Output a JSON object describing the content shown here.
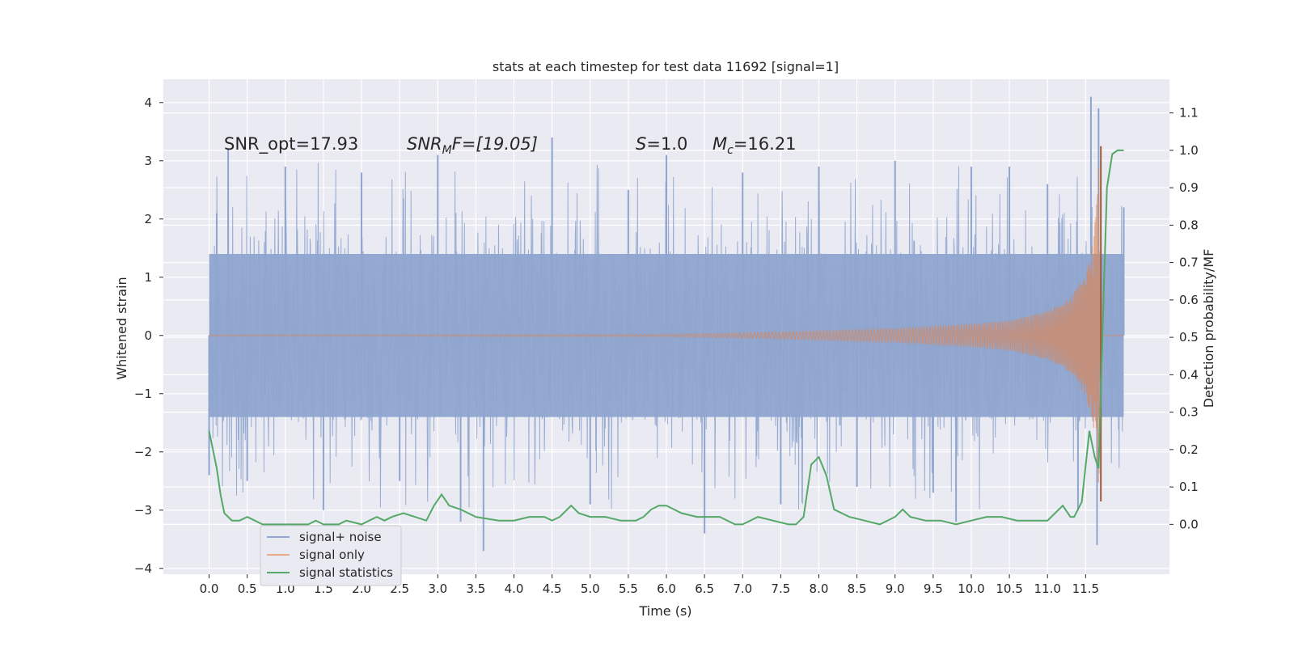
{
  "chart_data": {
    "type": "line",
    "title": "stats at each timestep for test data 11692 [signal=1]",
    "xlabel": "Time (s)",
    "ylabel": "Whitened strain",
    "y2label": "Detection probability/MF",
    "xlim": [
      -0.6,
      12.6
    ],
    "ylim": [
      -4.1,
      4.4
    ],
    "y2lim": [
      -0.1333,
      1.19
    ],
    "xticks": [
      "0.0",
      "0.5",
      "1.0",
      "1.5",
      "2.0",
      "2.5",
      "3.0",
      "3.5",
      "4.0",
      "4.5",
      "5.0",
      "5.5",
      "6.0",
      "6.5",
      "7.0",
      "7.5",
      "8.0",
      "8.5",
      "9.0",
      "9.5",
      "10.0",
      "10.5",
      "11.0",
      "11.5"
    ],
    "yticks": [
      "4",
      "3",
      "2",
      "1",
      "0",
      "−1",
      "−2",
      "−3",
      "−4"
    ],
    "y2ticks": [
      "1.1",
      "1.0",
      "0.9",
      "0.8",
      "0.7",
      "0.6",
      "0.5",
      "0.4",
      "0.3",
      "0.2",
      "0.1",
      "0.0"
    ],
    "grid": true,
    "legend_position": "lower-left",
    "annotations": {
      "snr_opt": "SNR_opt=17.93",
      "snr_mf_base": "SNR",
      "snr_mf_sub": "M",
      "snr_mf_rest": "F=[19.05]",
      "s_var": "S",
      "s_val": "=1.0",
      "mc_var": "M",
      "mc_sub": "c",
      "mc_val": "=16.21"
    },
    "series": [
      {
        "name": "signal+ noise",
        "color": "#8fa5cf",
        "description_range": [
          -3.6,
          4.1
        ],
        "points": [
          [
            0.0,
            -2.4
          ],
          [
            0.1,
            2.1
          ],
          [
            0.25,
            3.2
          ],
          [
            0.5,
            -2.5
          ],
          [
            1.0,
            2.9
          ],
          [
            1.5,
            -3.0
          ],
          [
            2.0,
            2.8
          ],
          [
            2.5,
            -2.5
          ],
          [
            3.0,
            3.1
          ],
          [
            3.3,
            -3.2
          ],
          [
            3.6,
            -3.7
          ],
          [
            4.5,
            3.4
          ],
          [
            5.0,
            -2.9
          ],
          [
            5.5,
            2.5
          ],
          [
            6.0,
            3.1
          ],
          [
            6.5,
            -3.4
          ],
          [
            7.0,
            2.8
          ],
          [
            7.5,
            -2.9
          ],
          [
            8.0,
            2.9
          ],
          [
            8.5,
            -2.6
          ],
          [
            9.0,
            3.0
          ],
          [
            9.5,
            -2.7
          ],
          [
            9.8,
            -3.2
          ],
          [
            10.0,
            2.9
          ],
          [
            10.5,
            2.9
          ],
          [
            11.0,
            2.6
          ],
          [
            11.4,
            -3.0
          ],
          [
            11.57,
            4.1
          ],
          [
            11.65,
            -3.6
          ],
          [
            11.67,
            3.9
          ],
          [
            12.0,
            2.2
          ]
        ]
      },
      {
        "name": "signal only",
        "color": "#dd8452",
        "envelope": [
          [
            0.0,
            0.01
          ],
          [
            6.0,
            0.02
          ],
          [
            7.5,
            0.06
          ],
          [
            9.0,
            0.12
          ],
          [
            10.0,
            0.2
          ],
          [
            10.5,
            0.26
          ],
          [
            11.0,
            0.42
          ],
          [
            11.3,
            0.65
          ],
          [
            11.5,
            1.05
          ],
          [
            11.6,
            1.6
          ],
          [
            11.65,
            2.4
          ],
          [
            11.69,
            3.3
          ],
          [
            11.7,
            3.3
          ],
          [
            11.71,
            0.0
          ],
          [
            12.0,
            0.0
          ]
        ]
      },
      {
        "name": "signal statistics",
        "color": "#55a868",
        "axis": "right",
        "points": [
          [
            0.0,
            0.25
          ],
          [
            0.1,
            0.15
          ],
          [
            0.15,
            0.08
          ],
          [
            0.2,
            0.03
          ],
          [
            0.3,
            0.01
          ],
          [
            0.4,
            0.01
          ],
          [
            0.5,
            0.02
          ],
          [
            0.6,
            0.01
          ],
          [
            0.7,
            0.0
          ],
          [
            0.9,
            0.0
          ],
          [
            1.0,
            0.0
          ],
          [
            1.2,
            0.0
          ],
          [
            1.3,
            0.0
          ],
          [
            1.4,
            0.01
          ],
          [
            1.5,
            0.0
          ],
          [
            1.7,
            0.0
          ],
          [
            1.8,
            0.01
          ],
          [
            2.0,
            0.0
          ],
          [
            2.2,
            0.02
          ],
          [
            2.3,
            0.01
          ],
          [
            2.4,
            0.02
          ],
          [
            2.55,
            0.03
          ],
          [
            2.7,
            0.02
          ],
          [
            2.85,
            0.01
          ],
          [
            2.95,
            0.05
          ],
          [
            3.05,
            0.08
          ],
          [
            3.15,
            0.05
          ],
          [
            3.3,
            0.04
          ],
          [
            3.5,
            0.02
          ],
          [
            3.8,
            0.01
          ],
          [
            4.0,
            0.01
          ],
          [
            4.2,
            0.02
          ],
          [
            4.4,
            0.02
          ],
          [
            4.5,
            0.01
          ],
          [
            4.6,
            0.02
          ],
          [
            4.75,
            0.05
          ],
          [
            4.85,
            0.03
          ],
          [
            5.0,
            0.02
          ],
          [
            5.2,
            0.02
          ],
          [
            5.4,
            0.01
          ],
          [
            5.6,
            0.01
          ],
          [
            5.7,
            0.02
          ],
          [
            5.8,
            0.04
          ],
          [
            5.9,
            0.05
          ],
          [
            6.0,
            0.05
          ],
          [
            6.1,
            0.04
          ],
          [
            6.2,
            0.03
          ],
          [
            6.4,
            0.02
          ],
          [
            6.5,
            0.02
          ],
          [
            6.7,
            0.02
          ],
          [
            6.9,
            0.0
          ],
          [
            7.0,
            0.0
          ],
          [
            7.2,
            0.02
          ],
          [
            7.4,
            0.01
          ],
          [
            7.6,
            0.0
          ],
          [
            7.7,
            0.0
          ],
          [
            7.8,
            0.02
          ],
          [
            7.9,
            0.16
          ],
          [
            8.0,
            0.18
          ],
          [
            8.1,
            0.13
          ],
          [
            8.2,
            0.04
          ],
          [
            8.4,
            0.02
          ],
          [
            8.6,
            0.01
          ],
          [
            8.8,
            0.0
          ],
          [
            9.0,
            0.02
          ],
          [
            9.1,
            0.04
          ],
          [
            9.2,
            0.02
          ],
          [
            9.4,
            0.01
          ],
          [
            9.6,
            0.01
          ],
          [
            9.8,
            0.0
          ],
          [
            10.0,
            0.01
          ],
          [
            10.2,
            0.02
          ],
          [
            10.4,
            0.02
          ],
          [
            10.6,
            0.01
          ],
          [
            10.8,
            0.01
          ],
          [
            11.0,
            0.01
          ],
          [
            11.1,
            0.03
          ],
          [
            11.2,
            0.05
          ],
          [
            11.3,
            0.02
          ],
          [
            11.35,
            0.02
          ],
          [
            11.45,
            0.06
          ],
          [
            11.55,
            0.25
          ],
          [
            11.62,
            0.18
          ],
          [
            11.67,
            0.15
          ],
          [
            11.72,
            0.5
          ],
          [
            11.78,
            0.9
          ],
          [
            11.85,
            0.99
          ],
          [
            11.92,
            1.0
          ],
          [
            12.0,
            1.0
          ]
        ]
      }
    ]
  }
}
